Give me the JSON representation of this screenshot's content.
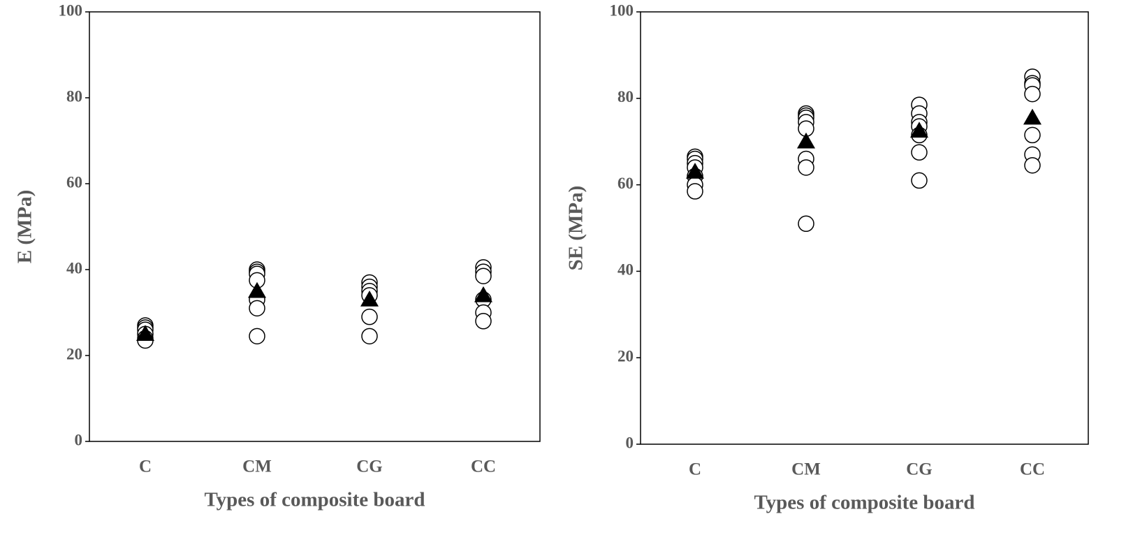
{
  "chart_data": [
    {
      "type": "scatter",
      "ylabel": "E (MPa)",
      "xlabel": "Types of composite board",
      "categories": [
        "C",
        "CM",
        "CG",
        "CC"
      ],
      "ylim": [
        0,
        100
      ],
      "yticks": [
        0,
        20,
        40,
        60,
        80,
        100
      ],
      "series": [
        {
          "marker": "circle",
          "color": "#000000",
          "values": [
            [
              27,
              26.5,
              26,
              25,
              24,
              23.5
            ],
            [
              40,
              39.5,
              39,
              37.5,
              33,
              31,
              24.5
            ],
            [
              37,
              36,
              35,
              34,
              29,
              24.5
            ],
            [
              40.5,
              39.5,
              38.5,
              33,
              30,
              28
            ]
          ]
        },
        {
          "marker": "triangle",
          "color": "#000000",
          "values": [
            25,
            35,
            33,
            34
          ]
        }
      ]
    },
    {
      "type": "scatter",
      "ylabel": "SE (MPa)",
      "xlabel": "Types of composite board",
      "categories": [
        "C",
        "CM",
        "CG",
        "CC"
      ],
      "ylim": [
        0,
        100
      ],
      "yticks": [
        0,
        20,
        40,
        60,
        80,
        100
      ],
      "series": [
        {
          "marker": "circle",
          "color": "#000000",
          "values": [
            [
              66.5,
              66,
              65,
              64,
              62,
              60,
              58.5
            ],
            [
              76.5,
              76,
              75.5,
              74.5,
              73,
              66,
              64,
              51
            ],
            [
              78.5,
              76.5,
              74.5,
              73.5,
              71.5,
              67.5,
              61
            ],
            [
              85,
              83.5,
              83,
              81,
              71.5,
              67,
              64.5
            ]
          ]
        },
        {
          "marker": "triangle",
          "color": "#000000",
          "values": [
            63,
            70,
            72.5,
            75.5
          ]
        }
      ]
    }
  ]
}
